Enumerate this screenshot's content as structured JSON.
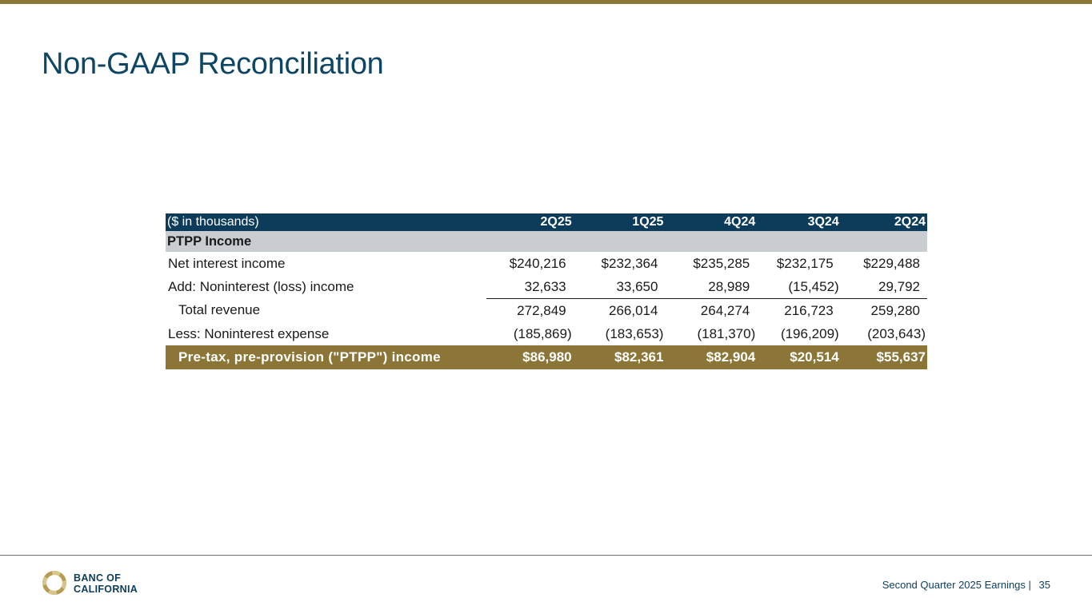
{
  "slide": {
    "title": "Non-GAAP Reconciliation"
  },
  "table": {
    "units_label": "($ in thousands)",
    "columns": [
      "2Q25",
      "1Q25",
      "4Q24",
      "3Q24",
      "2Q24"
    ],
    "section_label": "PTPP Income",
    "rows": [
      {
        "label": "Net interest income",
        "values": [
          "$240,216",
          "$232,364",
          "$235,285",
          "$232,175",
          "$229,488"
        ]
      },
      {
        "label": "Add: Noninterest (loss) income",
        "values": [
          "32,633",
          "33,650",
          "28,989",
          "(15,452)",
          "29,792"
        ]
      },
      {
        "label": "Total revenue",
        "values": [
          "272,849",
          "266,014",
          "264,274",
          "216,723",
          "259,280"
        ]
      },
      {
        "label": "Less: Noninterest expense",
        "values": [
          "(185,869)",
          "(183,653)",
          "(181,370)",
          "(196,209)",
          "(203,643)"
        ]
      }
    ],
    "total": {
      "label": "Pre-tax, pre-provision (\"PTPP\") income",
      "values": [
        "$86,980",
        "$82,361",
        "$82,904",
        "$20,514",
        "$55,637"
      ]
    }
  },
  "footer": {
    "logo_line1": "BANC OF",
    "logo_line2": "CALIFORNIA",
    "caption": "Second Quarter 2025 Earnings |",
    "page_number": "35"
  },
  "colors": {
    "navy": "#0d3c5a",
    "gold": "#8b7637",
    "gray": "#c9ccd0"
  }
}
